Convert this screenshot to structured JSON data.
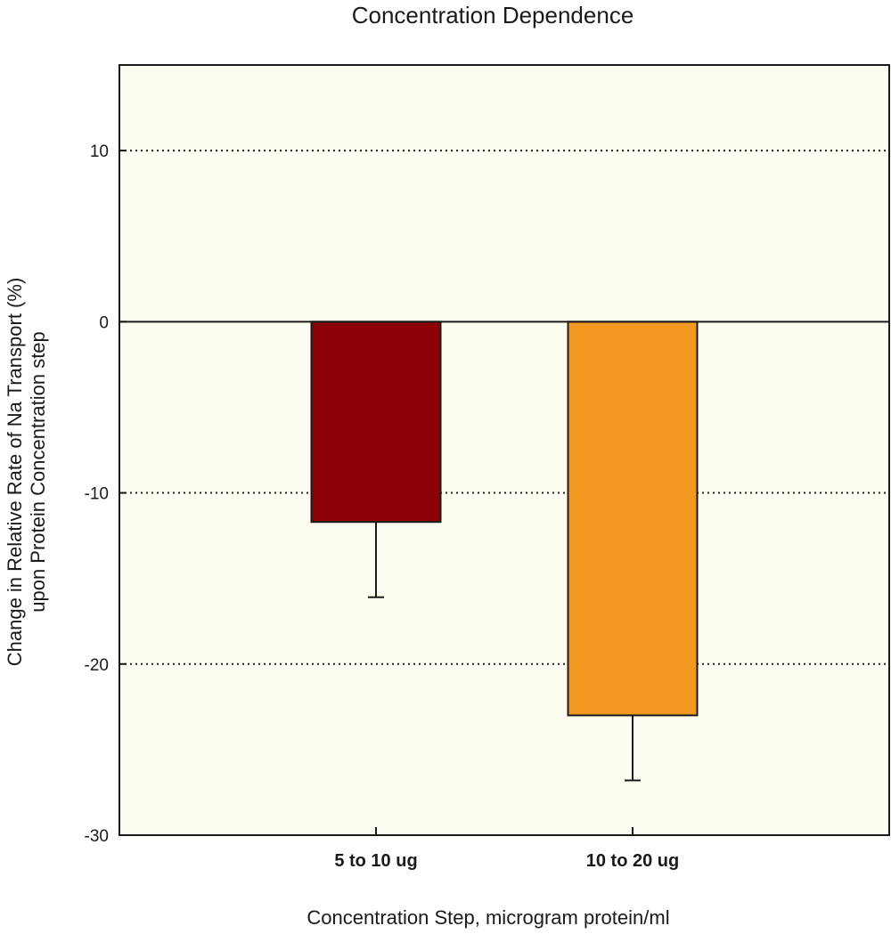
{
  "chart_data": {
    "type": "bar",
    "title": "Concentration Dependence",
    "xlabel": "Concentration Step, microgram protein/ml",
    "ylabel_lines": [
      "Change in Relative Rate of Na Transport (%)",
      "upon Protein Concentration step"
    ],
    "categories": [
      "5 to 10 ug",
      "10 to 20 ug"
    ],
    "values": [
      -11.7,
      -23.0
    ],
    "error_bars": [
      4.4,
      3.8
    ],
    "ylim": [
      -30,
      15
    ],
    "yticks": [
      -30,
      -20,
      -10,
      0,
      10
    ],
    "ytick_labels": [
      "-30",
      "-20",
      "-10",
      "0",
      "10"
    ],
    "gridlines": [
      -20,
      -10,
      10
    ],
    "grid_style": "dotted",
    "legend": "none",
    "colors": {
      "background": "#fdfdf2",
      "bars": [
        "#8b0007",
        "#f59821"
      ],
      "axis": "#1a1a1a"
    }
  }
}
